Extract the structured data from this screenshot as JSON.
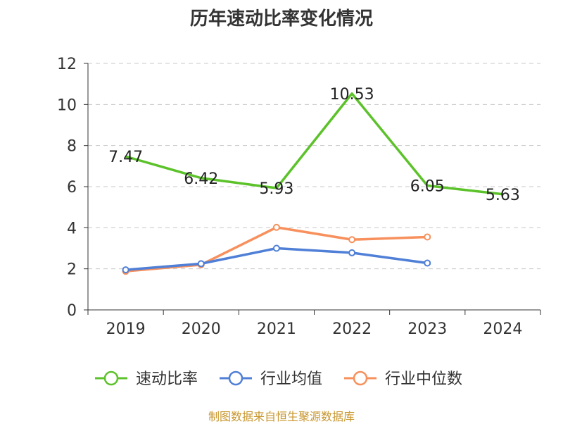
{
  "chart_data": {
    "type": "line",
    "title": "历年速动比率变化情况",
    "categories": [
      "2019",
      "2020",
      "2021",
      "2022",
      "2023",
      "2024"
    ],
    "ylim": [
      0,
      12
    ],
    "yticks": [
      0,
      2,
      4,
      6,
      8,
      10,
      12
    ],
    "grid": true,
    "legend_position": "bottom",
    "series": [
      {
        "name": "速动比率",
        "color": "#5cc22a",
        "show_labels": true,
        "show_markers": false,
        "values": [
          7.47,
          6.42,
          5.93,
          10.53,
          6.05,
          5.63
        ]
      },
      {
        "name": "行业均值",
        "color": "#4f7fd6",
        "show_labels": false,
        "show_markers": true,
        "values": [
          1.95,
          2.25,
          3.0,
          2.78,
          2.28,
          null
        ]
      },
      {
        "name": "行业中位数",
        "color": "#f7905c",
        "show_labels": false,
        "show_markers": true,
        "values": [
          1.88,
          2.2,
          4.02,
          3.42,
          3.55,
          null
        ]
      }
    ]
  },
  "footer": {
    "source": "制图数据来自恒生聚源数据库"
  }
}
